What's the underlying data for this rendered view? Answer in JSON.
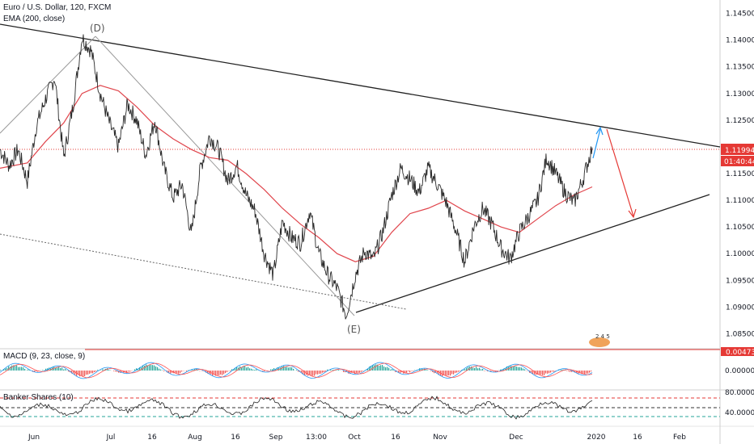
{
  "legends": {
    "main_title": "Euro / U.S. Dollar, 120, FXCM",
    "ema_label": "EMA (200, close)",
    "macd_label": "MACD (9, 23, close, 9)",
    "banker_label": "Banker Shares (10)"
  },
  "chart_data": {
    "type": "line",
    "main": {
      "y_ticks": [
        "1.14500",
        "1.14000",
        "1.13500",
        "1.13000",
        "1.12500",
        "1.11500",
        "1.11000",
        "1.10500",
        "1.10000",
        "1.09500",
        "1.09000",
        "1.08500"
      ],
      "ylim": [
        1.0825,
        1.1475
      ],
      "x_ticks": [
        "Jun",
        "Jul",
        "16",
        "Aug",
        "16",
        "Sep",
        "13:00",
        "Oct",
        "16",
        "Nov",
        "Dec",
        "2020",
        "16",
        "Feb"
      ],
      "current_price": "1.11994",
      "countdown": "01:40:44",
      "annotations": [
        "(D)",
        "(E)"
      ],
      "price_path": [
        [
          0,
          1.1195
        ],
        [
          0.02,
          1.1165
        ],
        [
          0.04,
          1.1195
        ],
        [
          0.06,
          1.1135
        ],
        [
          0.08,
          1.124
        ],
        [
          0.1,
          1.129
        ],
        [
          0.12,
          1.133
        ],
        [
          0.14,
          1.118
        ],
        [
          0.16,
          1.1275
        ],
        [
          0.18,
          1.1405
        ],
        [
          0.2,
          1.138
        ],
        [
          0.22,
          1.13
        ],
        [
          0.24,
          1.1245
        ],
        [
          0.26,
          1.12
        ],
        [
          0.28,
          1.128
        ],
        [
          0.3,
          1.125
        ],
        [
          0.32,
          1.1185
        ],
        [
          0.34,
          1.125
        ],
        [
          0.36,
          1.116
        ],
        [
          0.38,
          1.1105
        ],
        [
          0.4,
          1.113
        ],
        [
          0.42,
          1.1035
        ],
        [
          0.44,
          1.116
        ],
        [
          0.46,
          1.122
        ],
        [
          0.48,
          1.1195
        ],
        [
          0.5,
          1.1135
        ],
        [
          0.52,
          1.1165
        ],
        [
          0.54,
          1.111
        ],
        [
          0.56,
          1.108
        ],
        [
          0.58,
          1.1
        ],
        [
          0.6,
          1.096
        ],
        [
          0.62,
          1.106
        ],
        [
          0.64,
          1.103
        ],
        [
          0.66,
          1.102
        ],
        [
          0.68,
          1.108
        ],
        [
          0.7,
          1.1
        ],
        [
          0.72,
          1.096
        ],
        [
          0.74,
          1.0935
        ],
        [
          0.76,
          1.0885
        ],
        [
          0.78,
          1.096
        ],
        [
          0.8,
          1.1005
        ],
        [
          0.82,
          1.099
        ],
        [
          0.84,
          1.104
        ],
        [
          0.86,
          1.111
        ],
        [
          0.88,
          1.116
        ],
        [
          0.9,
          1.114
        ],
        [
          0.92,
          1.1115
        ],
        [
          0.94,
          1.116
        ],
        [
          0.96,
          1.113
        ],
        [
          0.98,
          1.1095
        ],
        [
          1.0,
          1.1045
        ],
        [
          1.02,
          1.0985
        ],
        [
          1.04,
          1.105
        ],
        [
          1.06,
          1.1085
        ],
        [
          1.08,
          1.1055
        ],
        [
          1.1,
          1.101
        ],
        [
          1.12,
          1.099
        ],
        [
          1.14,
          1.104
        ],
        [
          1.16,
          1.107
        ],
        [
          1.18,
          1.11
        ],
        [
          1.2,
          1.118
        ],
        [
          1.22,
          1.115
        ],
        [
          1.24,
          1.1115
        ],
        [
          1.26,
          1.1095
        ],
        [
          1.28,
          1.114
        ],
        [
          1.3,
          1.1199
        ]
      ],
      "ema_path": [
        [
          0,
          1.116
        ],
        [
          0.06,
          1.117
        ],
        [
          0.1,
          1.121
        ],
        [
          0.14,
          1.1245
        ],
        [
          0.18,
          1.13
        ],
        [
          0.22,
          1.1315
        ],
        [
          0.26,
          1.1305
        ],
        [
          0.3,
          1.1275
        ],
        [
          0.34,
          1.124
        ],
        [
          0.38,
          1.1215
        ],
        [
          0.42,
          1.1195
        ],
        [
          0.46,
          1.118
        ],
        [
          0.5,
          1.1175
        ],
        [
          0.54,
          1.115
        ],
        [
          0.58,
          1.112
        ],
        [
          0.62,
          1.1085
        ],
        [
          0.66,
          1.1055
        ],
        [
          0.7,
          1.103
        ],
        [
          0.74,
          1.1
        ],
        [
          0.78,
          1.0985
        ],
        [
          0.82,
          1.0995
        ],
        [
          0.86,
          1.104
        ],
        [
          0.9,
          1.1075
        ],
        [
          0.94,
          1.1085
        ],
        [
          0.98,
          1.11
        ],
        [
          1.02,
          1.108
        ],
        [
          1.06,
          1.1065
        ],
        [
          1.1,
          1.105
        ],
        [
          1.14,
          1.104
        ],
        [
          1.18,
          1.1065
        ],
        [
          1.22,
          1.109
        ],
        [
          1.26,
          1.111
        ],
        [
          1.3,
          1.1125
        ]
      ]
    },
    "macd": {
      "y_ticks": [
        "0.00000"
      ],
      "value_label": "0.00473"
    },
    "banker": {
      "y_ticks": [
        "80.0000",
        "40.0000"
      ]
    }
  },
  "badge_text": "2 4 5",
  "colors": {
    "price": "#2a2a2a",
    "ema": "#e0464d",
    "macd_line": "#2196f3",
    "signal_line": "#ff5252",
    "hist_pos": "#26a69a",
    "hist_neg": "#ef5350",
    "price_line": "#e53935",
    "arrow": "#e53935",
    "banker_level_top": "#e53935",
    "banker_level_bottom": "#26a69a"
  }
}
